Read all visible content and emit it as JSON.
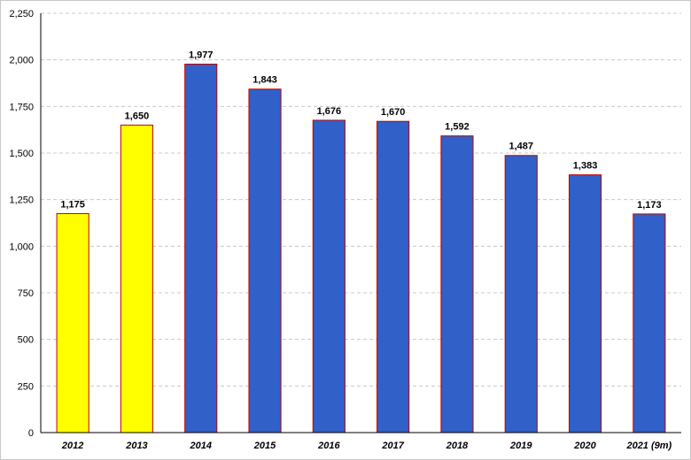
{
  "chart_data": {
    "type": "bar",
    "categories": [
      "2012",
      "2013",
      "2014",
      "2015",
      "2016",
      "2017",
      "2018",
      "2019",
      "2020",
      "2021 (9m)"
    ],
    "values": [
      1175,
      1650,
      1977,
      1843,
      1676,
      1670,
      1592,
      1487,
      1383,
      1173
    ],
    "data_labels": [
      "1,175",
      "1,650",
      "1,977",
      "1,843",
      "1,676",
      "1,670",
      "1,592",
      "1,487",
      "1,383",
      "1,173"
    ],
    "bar_colors": [
      "#ffff00",
      "#ffff00",
      "#3060c8",
      "#3060c8",
      "#3060c8",
      "#3060c8",
      "#3060c8",
      "#3060c8",
      "#3060c8",
      "#3060c8"
    ],
    "bar_edge_color": "#c00000",
    "ylim": [
      0,
      2250
    ],
    "yticks": [
      0,
      250,
      500,
      750,
      1000,
      1250,
      1500,
      1750,
      2000,
      2250
    ],
    "ytick_labels": [
      "0",
      "250",
      "500",
      "750",
      "1,000",
      "1,250",
      "1,500",
      "1,750",
      "2,000",
      "2,250"
    ],
    "grid": true,
    "legend": "none",
    "title": "",
    "xlabel": "",
    "ylabel": ""
  }
}
